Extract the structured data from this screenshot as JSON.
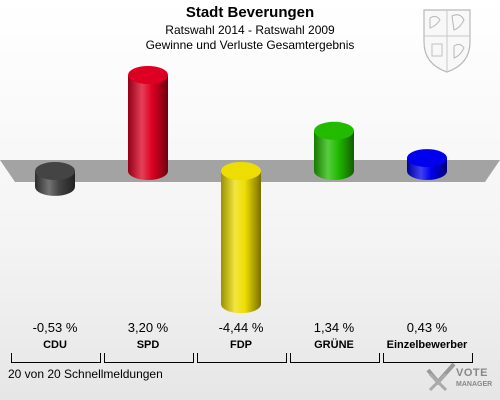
{
  "header": {
    "title": "Stadt Beverungen",
    "subtitle": "Ratswahl 2014 - Ratswahl 2009",
    "subtitle2": "Gewinne und Verluste Gesamtergebnis"
  },
  "footer": {
    "text": "20 von 20 Schnellmeldungen"
  },
  "logo": {
    "line1": "VOTE",
    "line2": "MANAGER"
  },
  "colors": {
    "CDU": "#444444",
    "SPD": "#dd0022",
    "FDP": "#eedd00",
    "GRUENE": "#22bb00",
    "Einzelbewerber": "#0000ee"
  },
  "chart_data": {
    "type": "bar",
    "categories": [
      "CDU",
      "SPD",
      "FDP",
      "GRÜNE",
      "Einzelbewerber"
    ],
    "values": [
      -0.53,
      3.2,
      -4.44,
      1.34,
      0.43
    ],
    "value_labels": [
      "-0,53 %",
      "3,20 %",
      "-4,44 %",
      "1,34 %",
      "0,43 %"
    ],
    "colors": [
      "#444444",
      "#dd0022",
      "#eedd00",
      "#22bb00",
      "#0000ee"
    ],
    "title": "Stadt Beverungen",
    "ylim": [
      -4.44,
      3.2
    ],
    "grid": false,
    "legend": "none"
  }
}
